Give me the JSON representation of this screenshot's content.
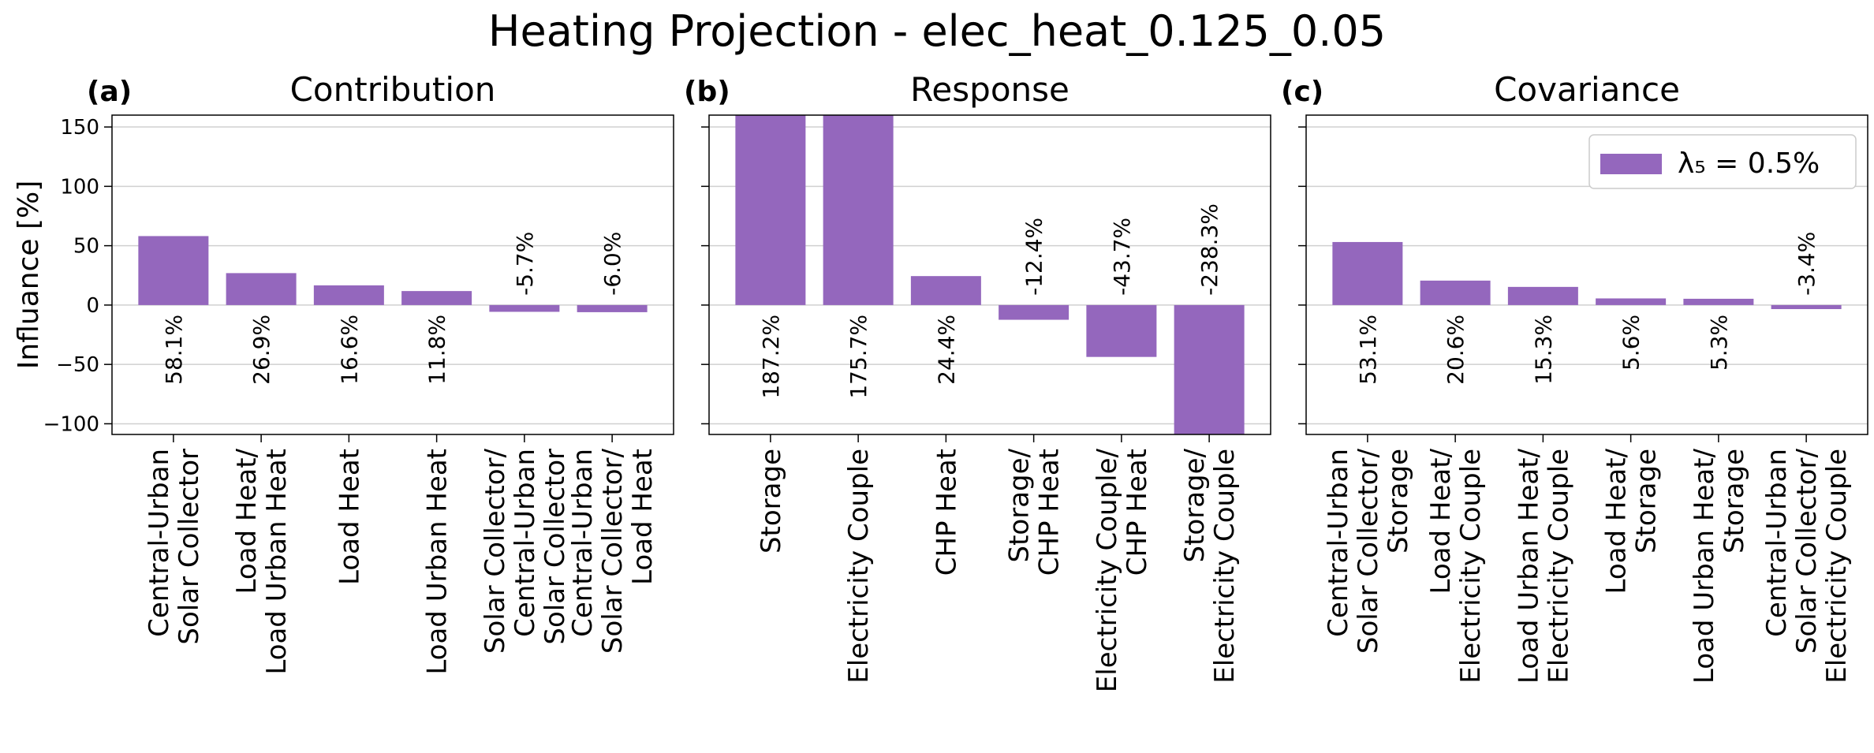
{
  "title": "Heating Projection - elec_heat_0.125_0.05",
  "chart_data": [
    {
      "type": "bar",
      "panel_label": "(a)",
      "title": "Contribution",
      "ylabel": "Influance [%]",
      "categories": [
        "Central-Urban\nSolar Collector",
        "Load Heat/\nLoad Urban Heat",
        "Load Heat",
        "Load Urban Heat",
        "Solar Collector/\nCentral-Urban\nSolar Collector",
        "Central-Urban\nSolar Collector/\nLoad Heat"
      ],
      "values": [
        58.1,
        26.9,
        16.6,
        11.8,
        -5.7,
        -6.0
      ],
      "value_labels": [
        "58.1%",
        "26.9%",
        "16.6%",
        "11.8%",
        "-5.7%",
        "-6.0%"
      ],
      "color": "#9467bd",
      "ylim": [
        -109,
        160
      ],
      "yticks": [
        {
          "value": -100,
          "label": "−100"
        },
        {
          "value": -50,
          "label": "−50"
        },
        0,
        50,
        100,
        150
      ],
      "grid": true
    },
    {
      "type": "bar",
      "panel_label": "(b)",
      "title": "Response",
      "categories": [
        "Storage",
        "Electricity Couple",
        "CHP Heat",
        "Storage/\nCHP Heat",
        "Electricity Couple/\nCHP Heat",
        "Storage/\nElectricity Couple"
      ],
      "values": [
        187.2,
        175.7,
        24.4,
        -12.4,
        -43.7,
        -238.3
      ],
      "value_labels": [
        "187.2%",
        "175.7%",
        "24.4%",
        "-12.4%",
        "-43.7%",
        "-238.3%"
      ],
      "color": "#9467bd",
      "ylim": [
        -109,
        160
      ],
      "yticks": [
        -100,
        -50,
        0,
        50,
        100,
        150
      ],
      "grid": true
    },
    {
      "type": "bar",
      "panel_label": "(c)",
      "title": "Covariance",
      "categories": [
        "Central-Urban\nSolar Collector/\nStorage",
        "Load Heat/\nElectricity Couple",
        "Load Urban Heat/\nElectricity Couple",
        "Load Heat/\nStorage",
        "Load Urban Heat/\nStorage",
        "Central-Urban\nSolar Collector/\nElectricity Couple"
      ],
      "values": [
        53.1,
        20.6,
        15.3,
        5.6,
        5.3,
        -3.4
      ],
      "value_labels": [
        "53.1%",
        "20.6%",
        "15.3%",
        "5.6%",
        "5.3%",
        "-3.4%"
      ],
      "color": "#9467bd",
      "ylim": [
        -109,
        160
      ],
      "yticks": [
        -100,
        -50,
        0,
        50,
        100,
        150
      ],
      "grid": true,
      "legend_label": "λ₅ = 0.5%",
      "legend_loc": "upper right"
    }
  ]
}
